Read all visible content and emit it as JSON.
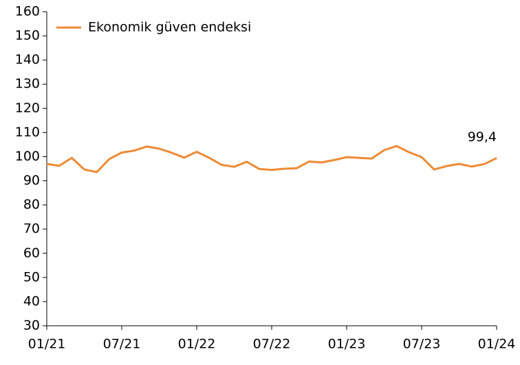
{
  "chart_data": {
    "type": "line",
    "categories": [
      "01/21",
      null,
      null,
      null,
      null,
      null,
      "07/21",
      null,
      null,
      null,
      null,
      null,
      "01/22",
      null,
      null,
      null,
      null,
      null,
      "07/22",
      null,
      null,
      null,
      null,
      null,
      "01/23",
      null,
      null,
      null,
      null,
      null,
      "07/23",
      null,
      null,
      null,
      null,
      null,
      "01/24"
    ],
    "series": [
      {
        "name": "Ekonomik güven endeksi",
        "color": "#ee8a34",
        "values": [
          97.0,
          96.2,
          99.5,
          94.7,
          93.6,
          99.0,
          101.7,
          102.5,
          104.2,
          103.3,
          101.6,
          99.6,
          102.0,
          99.5,
          96.6,
          95.8,
          97.9,
          94.9,
          94.5,
          95.0,
          95.2,
          98.0,
          97.6,
          98.6,
          99.8,
          99.5,
          99.2,
          102.7,
          104.4,
          101.8,
          99.8,
          94.7,
          96.1,
          97.0,
          95.9,
          96.9,
          99.4
        ],
        "value_labels": [
          null,
          null,
          null,
          null,
          null,
          null,
          null,
          null,
          null,
          null,
          null,
          null,
          null,
          null,
          null,
          null,
          null,
          null,
          null,
          null,
          null,
          null,
          null,
          null,
          null,
          null,
          null,
          null,
          null,
          null,
          null,
          null,
          null,
          null,
          null,
          null,
          "99,4"
        ]
      }
    ],
    "ylim": [
      30,
      160
    ],
    "yticks": [
      30,
      40,
      50,
      60,
      70,
      80,
      90,
      100,
      110,
      120,
      130,
      140,
      150,
      160
    ],
    "grid": false,
    "legend": "top-left"
  }
}
